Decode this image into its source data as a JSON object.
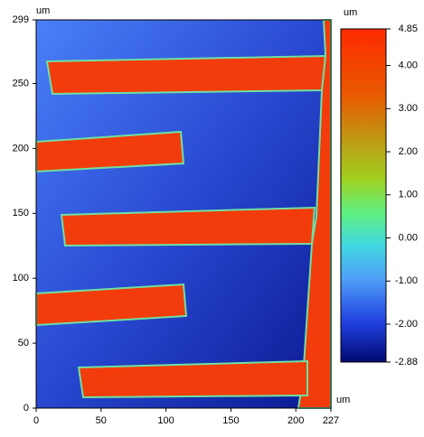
{
  "chart_data": {
    "type": "heatmap",
    "x_label": "um",
    "y_label": "um",
    "xlim": [
      0,
      227
    ],
    "xticks": [
      0,
      50,
      100,
      150,
      200,
      227
    ],
    "ylim": [
      0,
      299
    ],
    "yticks": [
      0,
      50,
      100,
      150,
      200,
      250,
      299
    ],
    "colorbar": {
      "label": "um",
      "lim": [
        -2.88,
        4.85
      ],
      "ticks": [
        -2.88,
        {
          "value": -2,
          "label": "-2.00"
        },
        {
          "value": -1,
          "label": "-1.00"
        },
        {
          "value": 0,
          "label": "0.00"
        },
        {
          "value": 1,
          "label": "1.00"
        },
        {
          "value": 2,
          "label": "2.00"
        },
        {
          "value": 3,
          "label": "3.00"
        },
        {
          "value": 4,
          "label": "4.00"
        },
        4.85
      ]
    }
  }
}
